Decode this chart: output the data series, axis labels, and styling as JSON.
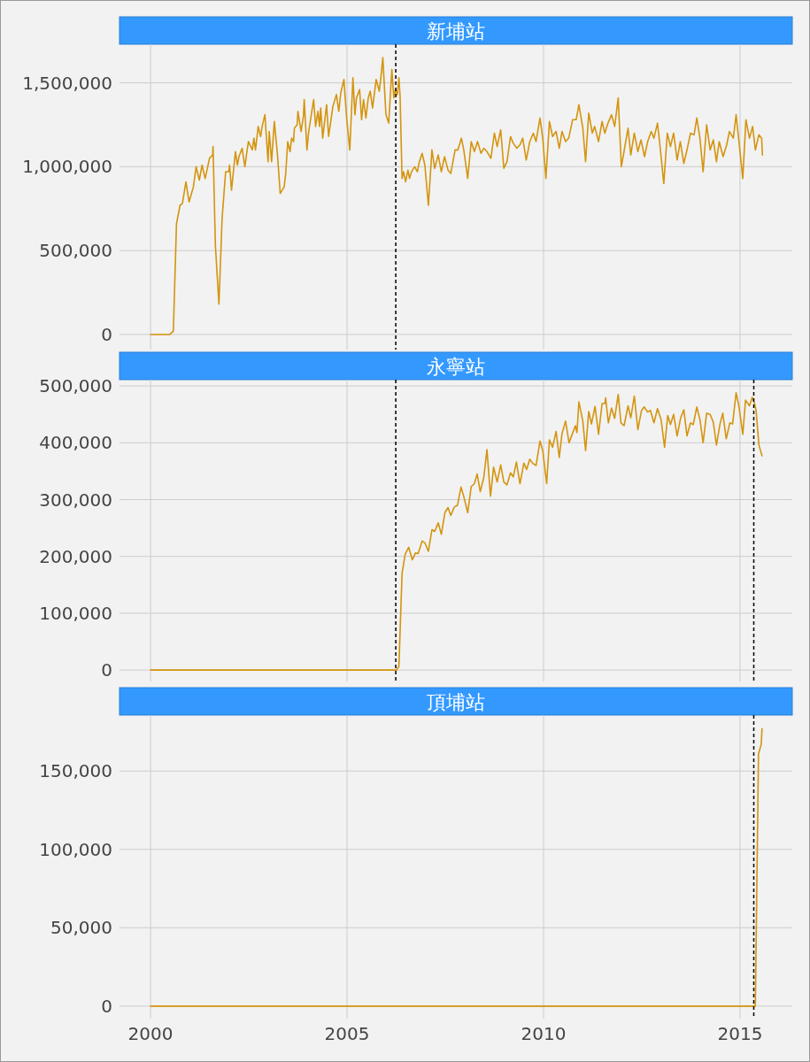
{
  "chart_data": [
    {
      "type": "line",
      "title": "新埔站",
      "color": "#d4940e",
      "grid": true,
      "tick_labels": "y",
      "xlim": [
        1999.21,
        2016.33
      ],
      "xticks": [
        2000,
        2005,
        2010,
        2015
      ],
      "ylim": [
        -90000,
        1730000
      ],
      "yticks": [
        {
          "value": 0,
          "label": "0"
        },
        {
          "value": 500000,
          "label": "500,000"
        },
        {
          "value": 1000000,
          "label": "1,000,000"
        },
        {
          "value": 1500000,
          "label": "1,500,000"
        }
      ],
      "ref_lines": [
        {
          "axis": "x",
          "value": 2006.24,
          "line_style": "dashed",
          "color": "#000000"
        }
      ],
      "x": [
        2000.0,
        2000.49,
        2000.58,
        2000.66,
        2000.75,
        2000.81,
        2000.9,
        2000.98,
        2001.09,
        2001.16,
        2001.24,
        2001.31,
        2001.39,
        2001.5,
        2001.58,
        2001.59,
        2001.65,
        2001.74,
        2001.82,
        2001.91,
        2001.99,
        2002.01,
        2002.06,
        2002.16,
        2002.21,
        2002.25,
        2002.33,
        2002.4,
        2002.44,
        2002.49,
        2002.59,
        2002.63,
        2002.67,
        2002.74,
        2002.8,
        2002.84,
        2002.91,
        2002.99,
        2003.02,
        2003.08,
        2003.12,
        2003.15,
        2003.23,
        2003.3,
        2003.4,
        2003.44,
        2003.49,
        2003.55,
        2003.59,
        2003.64,
        2003.66,
        2003.73,
        2003.75,
        2003.83,
        2003.89,
        2003.91,
        2003.98,
        2004.02,
        2004.09,
        2004.15,
        2004.2,
        2004.26,
        2004.3,
        2004.33,
        2004.38,
        2004.43,
        2004.48,
        2004.53,
        2004.58,
        2004.64,
        2004.73,
        2004.79,
        2004.84,
        2004.92,
        2004.99,
        2005.07,
        2005.15,
        2005.2,
        2005.24,
        2005.32,
        2005.37,
        2005.42,
        2005.48,
        2005.54,
        2005.59,
        2005.65,
        2005.74,
        2005.82,
        2005.86,
        2005.91,
        2005.99,
        2006.06,
        2006.14,
        2006.19,
        2006.23,
        2006.28,
        2006.32,
        2006.35,
        2006.4,
        2006.44,
        2006.49,
        2006.55,
        2006.59,
        2006.64,
        2006.72,
        2006.79,
        2006.83,
        2006.91,
        2006.98,
        2007.07,
        2007.16,
        2007.23,
        2007.32,
        2007.4,
        2007.48,
        2007.57,
        2007.64,
        2007.75,
        2007.82,
        2007.91,
        2007.97,
        2008.07,
        2008.16,
        2008.24,
        2008.32,
        2008.41,
        2008.48,
        2008.56,
        2008.66,
        2008.75,
        2008.82,
        2008.91,
        2008.99,
        2009.07,
        2009.16,
        2009.23,
        2009.32,
        2009.4,
        2009.47,
        2009.56,
        2009.65,
        2009.74,
        2009.81,
        2009.91,
        2009.98,
        2010.06,
        2010.15,
        2010.23,
        2010.32,
        2010.4,
        2010.47,
        2010.56,
        2010.64,
        2010.74,
        2010.83,
        2010.9,
        2011.0,
        2011.07,
        2011.15,
        2011.24,
        2011.3,
        2011.4,
        2011.49,
        2011.56,
        2011.64,
        2011.73,
        2011.81,
        2011.9,
        2011.98,
        2012.07,
        2012.15,
        2012.22,
        2012.31,
        2012.4,
        2012.48,
        2012.57,
        2012.65,
        2012.74,
        2012.81,
        2012.9,
        2012.97,
        2013.06,
        2013.15,
        2013.23,
        2013.31,
        2013.4,
        2013.48,
        2013.57,
        2013.66,
        2013.74,
        2013.83,
        2013.9,
        2013.98,
        2014.06,
        2014.15,
        2014.24,
        2014.32,
        2014.4,
        2014.47,
        2014.57,
        2014.66,
        2014.73,
        2014.83,
        2014.9,
        2014.99,
        2015.07,
        2015.15,
        2015.24,
        2015.32,
        2015.39,
        2015.48,
        2015.55,
        2015.57
      ],
      "values": [
        0,
        0,
        20000,
        660000,
        770000,
        780000,
        910000,
        790000,
        880000,
        1000000,
        920000,
        1010000,
        930000,
        1050000,
        1070000,
        1120000,
        530000,
        180000,
        690000,
        970000,
        970000,
        1010000,
        860000,
        1090000,
        1010000,
        1060000,
        1110000,
        1000000,
        1070000,
        1150000,
        1100000,
        1170000,
        1100000,
        1240000,
        1180000,
        1240000,
        1310000,
        1030000,
        1210000,
        1030000,
        1170000,
        1270000,
        1070000,
        840000,
        880000,
        960000,
        1150000,
        1090000,
        1170000,
        1150000,
        1230000,
        1250000,
        1330000,
        1210000,
        1300000,
        1400000,
        1100000,
        1200000,
        1310000,
        1400000,
        1240000,
        1330000,
        1240000,
        1350000,
        1170000,
        1270000,
        1370000,
        1180000,
        1260000,
        1360000,
        1430000,
        1330000,
        1440000,
        1520000,
        1290000,
        1100000,
        1530000,
        1310000,
        1410000,
        1460000,
        1280000,
        1400000,
        1290000,
        1410000,
        1450000,
        1350000,
        1520000,
        1450000,
        1530000,
        1650000,
        1310000,
        1260000,
        1580000,
        1410000,
        1460000,
        1430000,
        1530000,
        1420000,
        930000,
        970000,
        910000,
        980000,
        930000,
        970000,
        1000000,
        970000,
        1020000,
        1080000,
        1010000,
        770000,
        1100000,
        990000,
        1070000,
        970000,
        1060000,
        980000,
        960000,
        1100000,
        1100000,
        1170000,
        1100000,
        930000,
        1150000,
        1090000,
        1150000,
        1080000,
        1110000,
        1090000,
        1050000,
        1200000,
        1120000,
        1220000,
        990000,
        1030000,
        1180000,
        1140000,
        1110000,
        1130000,
        1170000,
        1040000,
        1150000,
        1200000,
        1150000,
        1290000,
        1170000,
        930000,
        1270000,
        1180000,
        1210000,
        1110000,
        1210000,
        1150000,
        1170000,
        1280000,
        1280000,
        1370000,
        1230000,
        1030000,
        1320000,
        1200000,
        1240000,
        1150000,
        1270000,
        1200000,
        1260000,
        1310000,
        1240000,
        1410000,
        1000000,
        1120000,
        1230000,
        1070000,
        1200000,
        1090000,
        1160000,
        1060000,
        1150000,
        1210000,
        1170000,
        1260000,
        1110000,
        900000,
        1200000,
        1120000,
        1200000,
        1040000,
        1150000,
        1020000,
        1110000,
        1200000,
        1190000,
        1290000,
        1170000,
        970000,
        1250000,
        1100000,
        1160000,
        1030000,
        1150000,
        1060000,
        1130000,
        1210000,
        1170000,
        1310000,
        1110000,
        930000,
        1280000,
        1170000,
        1240000,
        1100000,
        1190000,
        1170000,
        1070000
      ]
    },
    {
      "type": "line",
      "title": "永寧站",
      "color": "#d4940e",
      "grid": true,
      "tick_labels": "y",
      "xlim": [
        1999.21,
        2016.33
      ],
      "xticks": [
        2000,
        2005,
        2010,
        2015
      ],
      "ylim": [
        -20000,
        511000
      ],
      "yticks": [
        {
          "value": 0,
          "label": "0"
        },
        {
          "value": 100000,
          "label": "100,000"
        },
        {
          "value": 200000,
          "label": "200,000"
        },
        {
          "value": 300000,
          "label": "300,000"
        },
        {
          "value": 400000,
          "label": "400,000"
        },
        {
          "value": 500000,
          "label": "500,000"
        }
      ],
      "ref_lines": [
        {
          "axis": "x",
          "value": 2006.24,
          "line_style": "dashed",
          "color": "#000000"
        },
        {
          "axis": "x",
          "value": 2015.35,
          "line_style": "dashed",
          "color": "#000000"
        }
      ],
      "x": [
        2000.0,
        2006.25,
        2006.32,
        2006.4,
        2006.48,
        2006.57,
        2006.66,
        2006.74,
        2006.81,
        2006.91,
        2006.98,
        2007.07,
        2007.16,
        2007.23,
        2007.32,
        2007.4,
        2007.49,
        2007.57,
        2007.64,
        2007.73,
        2007.81,
        2007.9,
        2007.98,
        2008.07,
        2008.16,
        2008.24,
        2008.31,
        2008.39,
        2008.48,
        2008.56,
        2008.65,
        2008.73,
        2008.82,
        2008.91,
        2008.99,
        2009.07,
        2009.16,
        2009.23,
        2009.31,
        2009.4,
        2009.5,
        2009.57,
        2009.65,
        2009.72,
        2009.81,
        2009.91,
        2009.98,
        2010.08,
        2010.15,
        2010.23,
        2010.32,
        2010.4,
        2010.47,
        2010.56,
        2010.65,
        2010.74,
        2010.81,
        2010.85,
        2010.9,
        2011.0,
        2011.07,
        2011.15,
        2011.22,
        2011.31,
        2011.4,
        2011.49,
        2011.56,
        2011.58,
        2011.65,
        2011.73,
        2011.81,
        2011.9,
        2011.97,
        2012.05,
        2012.15,
        2012.22,
        2012.31,
        2012.4,
        2012.49,
        2012.56,
        2012.65,
        2012.72,
        2012.81,
        2012.9,
        2012.99,
        2013.08,
        2013.16,
        2013.23,
        2013.31,
        2013.4,
        2013.49,
        2013.57,
        2013.65,
        2013.74,
        2013.81,
        2013.9,
        2013.98,
        2014.06,
        2014.15,
        2014.24,
        2014.32,
        2014.4,
        2014.49,
        2014.56,
        2014.65,
        2014.74,
        2014.81,
        2014.9,
        2014.97,
        2015.07,
        2015.14,
        2015.24,
        2015.31,
        2015.37,
        2015.41,
        2015.48,
        2015.56
      ],
      "values": [
        0,
        0,
        6000,
        170000,
        204000,
        216000,
        194000,
        206000,
        205000,
        227000,
        224000,
        209000,
        247000,
        244000,
        259000,
        239000,
        277000,
        286000,
        272000,
        287000,
        290000,
        322000,
        303000,
        277000,
        323000,
        328000,
        345000,
        314000,
        339000,
        388000,
        306000,
        357000,
        331000,
        361000,
        331000,
        326000,
        347000,
        340000,
        366000,
        328000,
        364000,
        353000,
        371000,
        364000,
        360000,
        403000,
        386000,
        328000,
        405000,
        392000,
        420000,
        374000,
        416000,
        438000,
        400000,
        417000,
        430000,
        418000,
        472000,
        438000,
        386000,
        455000,
        433000,
        464000,
        415000,
        469000,
        469000,
        479000,
        435000,
        461000,
        443000,
        485000,
        435000,
        430000,
        465000,
        444000,
        482000,
        423000,
        456000,
        463000,
        454000,
        457000,
        435000,
        460000,
        441000,
        392000,
        448000,
        432000,
        450000,
        412000,
        444000,
        458000,
        412000,
        435000,
        432000,
        463000,
        441000,
        400000,
        452000,
        450000,
        436000,
        396000,
        433000,
        452000,
        407000,
        435000,
        433000,
        488000,
        465000,
        415000,
        475000,
        465000,
        480000,
        469000,
        456000,
        396000,
        377000
      ]
    },
    {
      "type": "line",
      "title": "頂埔站",
      "color": "#d4940e",
      "grid": true,
      "xlim": [
        1999.21,
        2016.33
      ],
      "xticks": [
        2000,
        2005,
        2010,
        2015
      ],
      "ylim": [
        -8000,
        185700
      ],
      "yticks": [
        {
          "value": 0,
          "label": "0"
        },
        {
          "value": 50000,
          "label": "50,000"
        },
        {
          "value": 100000,
          "label": "100,000"
        },
        {
          "value": 150000,
          "label": "150,000"
        }
      ],
      "ref_lines": [
        {
          "axis": "x",
          "value": 2015.35,
          "line_style": "dashed",
          "color": "#000000"
        }
      ],
      "x": [
        2000.0,
        2015.39,
        2015.47,
        2015.54,
        2015.56
      ],
      "values": [
        0,
        0,
        161000,
        167000,
        177000
      ]
    }
  ]
}
